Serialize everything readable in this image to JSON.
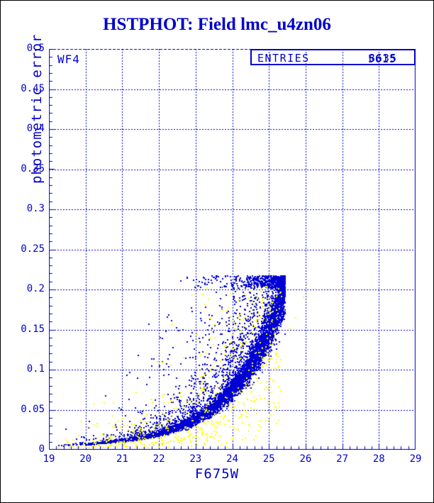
{
  "colors": {
    "accent": "#0000cc",
    "point_blue": "#0000d5",
    "point_yellow": "#ffff00",
    "background": "#ffffff",
    "outer_border": "#000000"
  },
  "header": {
    "title": "HSTPHOT: Field lmc_u4zn06"
  },
  "plot": {
    "panel_label": "WF4",
    "stat_box": {
      "label": "ENTRIES",
      "values": [
        "8635",
        "5615"
      ]
    },
    "xlabel": "F675W",
    "ylabel": "photometric error"
  },
  "chart_data": {
    "type": "scatter",
    "title": "HSTPHOT: Field lmc_u4zn06",
    "xlabel": "F675W",
    "ylabel": "photometric error",
    "xlim": [
      19,
      29
    ],
    "ylim": [
      0,
      0.5
    ],
    "x_tick_step": 1,
    "x_minor_tick_step": 0.2,
    "y_tick_step": 0.05,
    "y_minor_tick_step": 0.01,
    "x_tick_labels": [
      "19",
      "20",
      "21",
      "22",
      "23",
      "24",
      "25",
      "26",
      "27",
      "28",
      "29"
    ],
    "y_tick_labels": [
      "0",
      "0.05",
      "0.1",
      "0.15",
      "0.2",
      "0.25",
      "0.3",
      "0.35",
      "0.4",
      "0.45",
      "0.5"
    ],
    "grid": "dashed lines at every major tick, blue",
    "frame": "solid left/bottom/right, dashed top",
    "series": [
      {
        "name": "wf4-detections-primary",
        "color": "#0000d5",
        "marker": "2px-square",
        "entries": "8635",
        "ridge_curve_mag_vs_error": [
          [
            19,
            0.005
          ],
          [
            20,
            0.007
          ],
          [
            21,
            0.011
          ],
          [
            22,
            0.02
          ],
          [
            23,
            0.038
          ],
          [
            24,
            0.074
          ],
          [
            24.5,
            0.103
          ],
          [
            25,
            0.148
          ],
          [
            25.4,
            0.205
          ]
        ],
        "mag_max": 25.45,
        "error_max": 0.217,
        "generator": {
          "n": 7000,
          "seed": 1234567,
          "mag_pow": 0.34,
          "mag_span": 6.45,
          "ridge_a": 0.003,
          "ridge_b": 0.002,
          "ridge_k": 1.4,
          "tight_frac": 0.75,
          "tight_sigma": 0.09,
          "mid_frac": 0.2,
          "mid_sigma": 0.5,
          "outlier_logf_min": 0.3,
          "outlier_logf_span": 2.0
        }
      },
      {
        "name": "wf4-detections-secondary",
        "color": "#ffff00",
        "marker": "2px-square",
        "entries": "5615",
        "generator": {
          "n": 640,
          "seed": 987654,
          "mag_pow": 0.55,
          "mag_span": 6.35,
          "sigma": 0.85,
          "error_cap": 0.205
        },
        "isolated_points": [
          [
            26.04,
            0.207
          ],
          [
            25.94,
            0.19
          ],
          [
            25.74,
            0.165
          ],
          [
            25.48,
            0.17
          ],
          [
            25.58,
            0.151
          ],
          [
            26.0,
            0.103
          ]
        ]
      }
    ]
  }
}
